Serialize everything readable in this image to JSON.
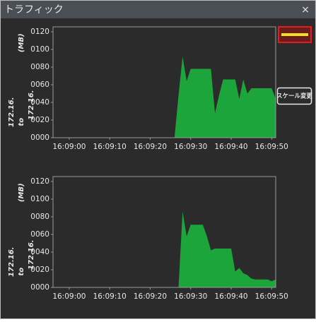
{
  "window": {
    "title": "トラフィック",
    "close": "×"
  },
  "button": "スケール変更",
  "chart_data": [
    {
      "type": "area",
      "y_label": "(MB)",
      "annotations": [
        "172.16.",
        "to",
        "172.16."
      ],
      "color": "#1ba53a",
      "x": [
        "16:08:56",
        "16:09:26",
        "16:09:27",
        "16:09:28",
        "16:09:29",
        "16:09:30",
        "16:09:31",
        "16:09:32",
        "16:09:33",
        "16:09:34",
        "16:09:35",
        "16:09:36",
        "16:09:37",
        "16:09:38",
        "16:09:39",
        "16:09:40",
        "16:09:41",
        "16:09:42",
        "16:09:43",
        "16:09:44",
        "16:09:45",
        "16:09:46",
        "16:09:47",
        "16:09:48",
        "16:09:49",
        "16:09:50",
        "16:09:51"
      ],
      "values": [
        0,
        0,
        48,
        92,
        64,
        78,
        78,
        78,
        78,
        78,
        78,
        28,
        48,
        66,
        66,
        66,
        66,
        44,
        66,
        50,
        56,
        56,
        56,
        56,
        56,
        56,
        44
      ],
      "xlim": [
        "16:08:56",
        "16:09:51"
      ],
      "xticks": [
        "16:09:00",
        "16:09:10",
        "16:09:20",
        "16:09:30",
        "16:09:40",
        "16:09:50"
      ],
      "ylim": [
        0,
        125
      ],
      "yticks": [
        {
          "value": 0,
          "label": "0000"
        },
        {
          "value": 20,
          "label": "0020"
        },
        {
          "value": 40,
          "label": "0040"
        },
        {
          "value": 60,
          "label": "0060"
        },
        {
          "value": 80,
          "label": "0080"
        },
        {
          "value": 100,
          "label": "0100"
        },
        {
          "value": 120,
          "label": "0120"
        }
      ]
    },
    {
      "type": "area",
      "y_label": "(MB)",
      "annotations": [
        "172.16.",
        "to",
        "172.16."
      ],
      "color": "#1ba53a",
      "x": [
        "16:08:56",
        "16:09:27",
        "16:09:28",
        "16:09:29",
        "16:09:30",
        "16:09:31",
        "16:09:32",
        "16:09:33",
        "16:09:34",
        "16:09:35",
        "16:09:36",
        "16:09:37",
        "16:09:38",
        "16:09:39",
        "16:09:40",
        "16:09:41",
        "16:09:42",
        "16:09:43",
        "16:09:44",
        "16:09:45",
        "16:09:46",
        "16:09:47",
        "16:09:48",
        "16:09:49",
        "16:09:50",
        "16:09:51"
      ],
      "values": [
        0,
        0,
        86,
        58,
        71,
        71,
        71,
        71,
        58,
        42,
        44,
        44,
        44,
        44,
        44,
        18,
        22,
        16,
        14,
        10,
        9,
        9,
        9,
        9,
        7,
        9
      ],
      "xlim": [
        "16:08:56",
        "16:09:51"
      ],
      "xticks": [
        "16:09:00",
        "16:09:10",
        "16:09:20",
        "16:09:30",
        "16:09:40",
        "16:09:50"
      ],
      "ylim": [
        0,
        125
      ],
      "yticks": [
        {
          "value": 0,
          "label": "0000"
        },
        {
          "value": 20,
          "label": "0020"
        },
        {
          "value": 40,
          "label": "0040"
        },
        {
          "value": 60,
          "label": "0060"
        },
        {
          "value": 80,
          "label": "0080"
        },
        {
          "value": 100,
          "label": "0100"
        },
        {
          "value": 120,
          "label": "0120"
        }
      ]
    }
  ]
}
